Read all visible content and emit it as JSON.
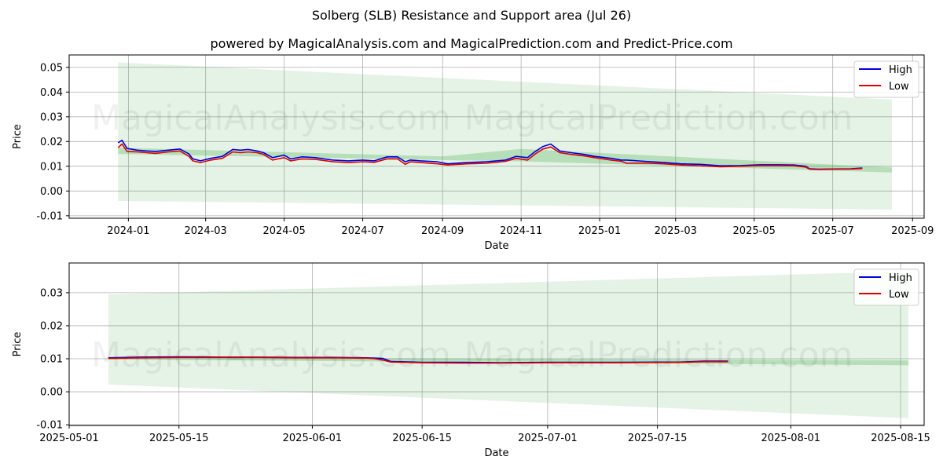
{
  "title": "Solberg (SLB) Resistance and Support area (Jul 26)",
  "subtitle": "powered by MagicalAnalysis.com and MagicalPrediction.com and Predict-Price.com",
  "watermarks": [
    "MagicalAnalysis.com",
    "MagicalPrediction.com"
  ],
  "colors": {
    "high": "#0000dd",
    "low": "#dd0000",
    "band": "#4caf50"
  },
  "chart_data": [
    {
      "type": "line",
      "xlabel": "Date",
      "ylabel": "Price",
      "xlim": [
        "2023-11-16",
        "2025-09-10"
      ],
      "ylim": [
        -0.011,
        0.055
      ],
      "xticks": [
        "2024-01",
        "2024-03",
        "2024-05",
        "2024-07",
        "2024-09",
        "2024-11",
        "2025-01",
        "2025-03",
        "2025-05",
        "2025-07",
        "2025-09"
      ],
      "yticks": [
        "-0.01",
        "0.00",
        "0.01",
        "0.02",
        "0.03",
        "0.04",
        "0.05"
      ],
      "grid": true,
      "legend": "top-right",
      "wide_band": {
        "x": [
          "2023-12-24",
          "2025-08-16"
        ],
        "upper": [
          0.052,
          0.037
        ],
        "lower": [
          -0.004,
          -0.0075
        ]
      },
      "inner_band": {
        "x": [
          "2023-12-24",
          "2024-09-01",
          "2024-11-01",
          "2025-08-16"
        ],
        "upper": [
          0.0175,
          0.014,
          0.017,
          0.0095
        ],
        "lower": [
          0.015,
          0.0125,
          0.012,
          0.0075
        ]
      },
      "series": [
        {
          "name": "High",
          "x": [
            "2023-12-24",
            "2023-12-27",
            "2023-12-31",
            "2024-01-08",
            "2024-01-15",
            "2024-01-22",
            "2024-02-01",
            "2024-02-10",
            "2024-02-17",
            "2024-02-20",
            "2024-02-26",
            "2024-03-05",
            "2024-03-14",
            "2024-03-22",
            "2024-03-28",
            "2024-04-03",
            "2024-04-10",
            "2024-04-15",
            "2024-04-22",
            "2024-05-01",
            "2024-05-06",
            "2024-05-15",
            "2024-05-25",
            "2024-06-08",
            "2024-06-20",
            "2024-07-01",
            "2024-07-10",
            "2024-07-20",
            "2024-07-28",
            "2024-08-03",
            "2024-08-07",
            "2024-08-15",
            "2024-08-28",
            "2024-09-05",
            "2024-09-20",
            "2024-10-05",
            "2024-10-20",
            "2024-10-28",
            "2024-11-06",
            "2024-11-12",
            "2024-11-18",
            "2024-11-24",
            "2024-12-01",
            "2024-12-10",
            "2024-12-20",
            "2024-12-28",
            "2025-01-10",
            "2025-01-18",
            "2025-01-22",
            "2025-02-05",
            "2025-02-20",
            "2025-03-05",
            "2025-03-20",
            "2025-04-05",
            "2025-04-20",
            "2025-05-05",
            "2025-05-20",
            "2025-06-01",
            "2025-06-10",
            "2025-06-13",
            "2025-06-20",
            "2025-07-01",
            "2025-07-15",
            "2025-07-24"
          ],
          "values": [
            0.0195,
            0.0205,
            0.0172,
            0.0165,
            0.0162,
            0.016,
            0.0165,
            0.017,
            0.015,
            0.013,
            0.0122,
            0.0132,
            0.014,
            0.0168,
            0.0165,
            0.0168,
            0.0162,
            0.0155,
            0.0135,
            0.0145,
            0.013,
            0.0138,
            0.0135,
            0.0125,
            0.0122,
            0.0125,
            0.0122,
            0.0138,
            0.0138,
            0.0118,
            0.0125,
            0.0122,
            0.0118,
            0.011,
            0.0115,
            0.0118,
            0.0125,
            0.014,
            0.0135,
            0.016,
            0.018,
            0.019,
            0.0162,
            0.0155,
            0.0148,
            0.014,
            0.0132,
            0.0125,
            0.0125,
            0.012,
            0.0115,
            0.011,
            0.0108,
            0.0102,
            0.0103,
            0.0106,
            0.0106,
            0.0105,
            0.01,
            0.009,
            0.0088,
            0.0089,
            0.009,
            0.0093
          ]
        },
        {
          "name": "Low",
          "x": [
            "2023-12-24",
            "2023-12-27",
            "2023-12-31",
            "2024-01-08",
            "2024-01-15",
            "2024-01-22",
            "2024-02-01",
            "2024-02-10",
            "2024-02-17",
            "2024-02-20",
            "2024-02-26",
            "2024-03-05",
            "2024-03-14",
            "2024-03-22",
            "2024-03-28",
            "2024-04-03",
            "2024-04-10",
            "2024-04-15",
            "2024-04-22",
            "2024-05-01",
            "2024-05-06",
            "2024-05-15",
            "2024-05-25",
            "2024-06-08",
            "2024-06-20",
            "2024-07-01",
            "2024-07-10",
            "2024-07-20",
            "2024-07-28",
            "2024-08-03",
            "2024-08-07",
            "2024-08-15",
            "2024-08-28",
            "2024-09-05",
            "2024-09-20",
            "2024-10-05",
            "2024-10-20",
            "2024-10-28",
            "2024-11-06",
            "2024-11-12",
            "2024-11-18",
            "2024-11-24",
            "2024-12-01",
            "2024-12-10",
            "2024-12-20",
            "2024-12-28",
            "2025-01-10",
            "2025-01-18",
            "2025-01-22",
            "2025-02-05",
            "2025-02-20",
            "2025-03-05",
            "2025-03-20",
            "2025-04-05",
            "2025-04-20",
            "2025-05-05",
            "2025-05-20",
            "2025-06-01",
            "2025-06-10",
            "2025-06-13",
            "2025-06-20",
            "2025-07-01",
            "2025-07-15",
            "2025-07-24"
          ],
          "values": [
            0.0175,
            0.019,
            0.016,
            0.0158,
            0.0155,
            0.0152,
            0.0158,
            0.0162,
            0.014,
            0.0122,
            0.0115,
            0.0125,
            0.0132,
            0.0158,
            0.0155,
            0.0158,
            0.0155,
            0.0148,
            0.0125,
            0.0135,
            0.0122,
            0.013,
            0.0128,
            0.0118,
            0.0115,
            0.0118,
            0.0116,
            0.013,
            0.013,
            0.0108,
            0.0118,
            0.0115,
            0.011,
            0.0105,
            0.011,
            0.0112,
            0.012,
            0.0132,
            0.0125,
            0.015,
            0.017,
            0.0178,
            0.0155,
            0.0148,
            0.0142,
            0.0135,
            0.0125,
            0.012,
            0.0112,
            0.0113,
            0.011,
            0.0105,
            0.0102,
            0.0098,
            0.01,
            0.0103,
            0.0103,
            0.0102,
            0.0097,
            0.0088,
            0.0087,
            0.0088,
            0.0089,
            0.0091
          ]
        }
      ]
    },
    {
      "type": "line",
      "xlabel": "Date",
      "ylabel": "Price",
      "xlim": [
        "2025-05-01",
        "2025-08-18"
      ],
      "ylim": [
        -0.0102,
        0.039
      ],
      "xticks": [
        "2025-05-01",
        "2025-05-15",
        "2025-06-01",
        "2025-06-15",
        "2025-07-01",
        "2025-07-15",
        "2025-08-01",
        "2025-08-15"
      ],
      "yticks": [
        "-0.01",
        "0.00",
        "0.01",
        "0.02",
        "0.03"
      ],
      "grid": true,
      "legend": "top-right",
      "wide_band": {
        "x": [
          "2025-05-06",
          "2025-08-16"
        ],
        "upper": [
          0.0295,
          0.0365
        ],
        "lower": [
          0.0022,
          -0.008
        ]
      },
      "inner_band": {
        "x": [
          "2025-05-06",
          "2025-08-16"
        ],
        "upper": [
          0.0105,
          0.0095
        ],
        "lower": [
          0.0098,
          0.008
        ]
      },
      "series": [
        {
          "name": "High",
          "x": [
            "2025-05-06",
            "2025-05-10",
            "2025-05-15",
            "2025-05-20",
            "2025-05-25",
            "2025-05-30",
            "2025-06-04",
            "2025-06-08",
            "2025-06-09",
            "2025-06-10",
            "2025-06-11",
            "2025-06-15",
            "2025-06-20",
            "2025-06-25",
            "2025-07-01",
            "2025-07-10",
            "2025-07-18",
            "2025-07-21",
            "2025-07-24"
          ],
          "values": [
            0.0103,
            0.0105,
            0.0106,
            0.0105,
            0.0105,
            0.0104,
            0.0104,
            0.0103,
            0.0102,
            0.0101,
            0.0092,
            0.0089,
            0.0089,
            0.0088,
            0.0089,
            0.0089,
            0.009,
            0.0093,
            0.0093
          ]
        },
        {
          "name": "Low",
          "x": [
            "2025-05-06",
            "2025-05-10",
            "2025-05-15",
            "2025-05-20",
            "2025-05-25",
            "2025-05-30",
            "2025-06-04",
            "2025-06-08",
            "2025-06-09",
            "2025-06-10",
            "2025-06-11",
            "2025-06-15",
            "2025-06-20",
            "2025-06-25",
            "2025-07-01",
            "2025-07-10",
            "2025-07-18",
            "2025-07-21",
            "2025-07-24"
          ],
          "values": [
            0.0101,
            0.0103,
            0.0104,
            0.0104,
            0.0104,
            0.0103,
            0.0103,
            0.0102,
            0.01,
            0.0096,
            0.009,
            0.0088,
            0.0087,
            0.0087,
            0.0088,
            0.0088,
            0.0089,
            0.0091,
            0.0091
          ]
        }
      ]
    }
  ]
}
